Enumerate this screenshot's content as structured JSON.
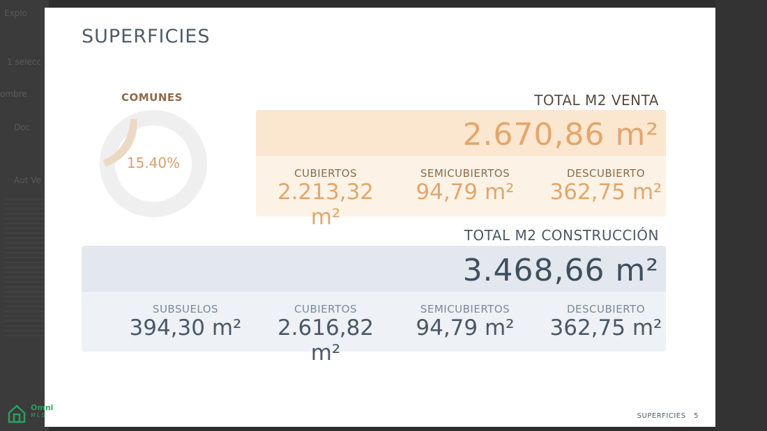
{
  "background": {
    "left_texts": [
      "Explo",
      "1 selecc",
      "ombre",
      "Doc",
      "Aut Ve"
    ]
  },
  "slide": {
    "title": "SUPERFICIES",
    "comunes": {
      "label": "COMUNES",
      "value": "15.40%",
      "fraction": 0.154
    },
    "venta": {
      "title": "TOTAL M2 VENTA",
      "total": "2.670,86 m²",
      "items": [
        {
          "label": "CUBIERTOS",
          "value": "2.213,32 m²"
        },
        {
          "label": "SEMICUBIERTOS",
          "value": "94,79 m²"
        },
        {
          "label": "DESCUBIERTO",
          "value": "362,75 m²"
        }
      ]
    },
    "construccion": {
      "title": "TOTAL M2 CONSTRUCCIÓN",
      "total": "3.468,66 m²",
      "items": [
        {
          "label": "SUBSUELOS",
          "value": "394,30 m²"
        },
        {
          "label": "CUBIERTOS",
          "value": "2.616,82 m²"
        },
        {
          "label": "SEMICUBIERTOS",
          "value": "94,79 m²"
        },
        {
          "label": "DESCUBIERTO",
          "value": "362,75 m²"
        }
      ]
    },
    "footer": {
      "section": "SUPERFICIES",
      "page": "5"
    }
  },
  "logo": {
    "name": "Omni",
    "sub": "MLS"
  },
  "colors": {
    "accent": "#e3a66b",
    "dark": "#4e5c66",
    "logo": "#28a060"
  }
}
